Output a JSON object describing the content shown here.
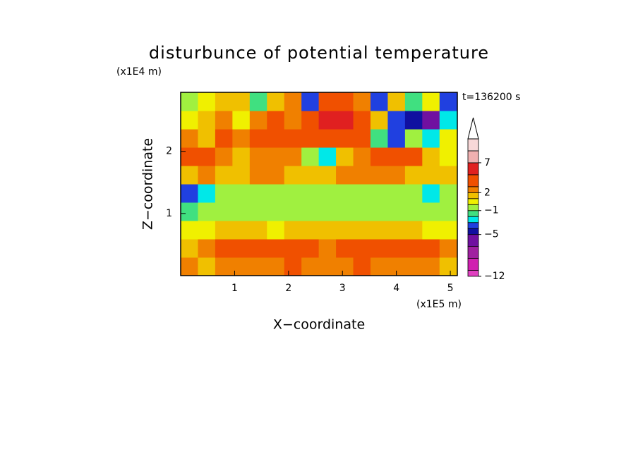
{
  "chart_data": {
    "type": "contour",
    "title": "disturbunce of potential temperature",
    "xlabel": "X−coordinate",
    "ylabel": "Z−coordinate",
    "xunit": "(x1E5 m)",
    "yunit": "(x1E4 m)",
    "annotation": "t=136200 s",
    "xlim": [
      0,
      5.13
    ],
    "ylim": [
      0,
      2.95
    ],
    "xticks": [
      1,
      2,
      3,
      4,
      5
    ],
    "yticks": [
      1,
      2
    ],
    "x": [
      0.16,
      0.48,
      0.8,
      1.12,
      1.44,
      1.76,
      2.08,
      2.4,
      2.72,
      3.04,
      3.36,
      3.68,
      4.0,
      4.32,
      4.64,
      4.96
    ],
    "y": [
      0.15,
      0.44,
      0.74,
      1.03,
      1.33,
      1.62,
      1.92,
      2.21,
      2.51,
      2.8
    ],
    "z": [
      [
        2,
        1,
        2,
        2,
        2,
        2,
        3,
        2,
        2,
        2,
        3,
        2,
        2,
        2,
        2,
        1
      ],
      [
        1,
        2,
        3,
        3,
        3,
        3,
        3,
        3,
        2,
        3,
        3,
        3,
        3,
        3,
        3,
        2
      ],
      [
        0,
        0,
        1,
        1,
        1,
        0.5,
        1,
        1,
        1,
        1,
        1,
        1,
        1,
        1,
        0.5,
        0.5
      ],
      [
        -2,
        -1,
        -0.5,
        -0.5,
        -0.5,
        -0.5,
        -0.5,
        -0.5,
        -0.5,
        -0.5,
        -0.5,
        -0.5,
        -0.5,
        -1,
        -0.5,
        -1
      ],
      [
        -4,
        -3,
        -0.5,
        -0.5,
        -0.5,
        -0.5,
        -0.5,
        -0.5,
        -0.5,
        -0.5,
        -0.5,
        -0.5,
        -1,
        -0.5,
        -3,
        -0.5
      ],
      [
        1,
        2,
        1,
        1,
        2,
        2,
        1,
        1,
        1.5,
        2,
        2,
        2,
        2,
        1.5,
        1,
        1
      ],
      [
        4,
        3,
        2,
        1,
        2,
        2,
        2,
        -0.5,
        -3,
        1,
        2,
        3,
        4,
        3,
        1,
        0.5
      ],
      [
        2,
        1,
        3,
        2,
        4,
        4,
        3,
        3,
        3,
        4,
        3,
        -2,
        -4,
        -1,
        -3,
        0.5
      ],
      [
        0,
        1,
        2,
        0.5,
        2,
        3,
        2,
        4,
        5,
        5,
        3,
        1,
        -4,
        -5,
        -7,
        -3
      ],
      [
        -1,
        0.5,
        1,
        1,
        -2,
        1,
        2,
        -4,
        3,
        4,
        2,
        -4,
        1,
        -2,
        0.5,
        -4
      ]
    ],
    "levels": [
      -12,
      -11,
      -9,
      -7,
      -5,
      -4,
      -3,
      -2,
      -1,
      0,
      1,
      2,
      3,
      5,
      7,
      9,
      11
    ],
    "colors": [
      "#e040c0",
      "#d020b0",
      "#a020a0",
      "#7010a0",
      "#1010a0",
      "#2040e0",
      "#00e8e8",
      "#40e080",
      "#a0f040",
      "#f0f000",
      "#f0c000",
      "#f08000",
      "#f05000",
      "#e02020",
      "#f0b0b0",
      "#f8d8d8"
    ],
    "cbar_ticks": [
      {
        "value": -12,
        "label": "−12"
      },
      {
        "value": -5,
        "label": "−5"
      },
      {
        "value": -1,
        "label": "−1"
      },
      2,
      7
    ]
  }
}
